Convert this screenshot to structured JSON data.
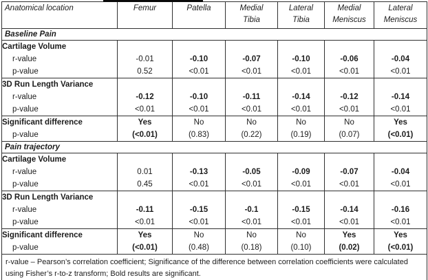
{
  "table": {
    "header": {
      "row_label": "Anatomical location",
      "columns": [
        "Femur",
        "Patella",
        "Medial\nTibia",
        "Lateral\nTibia",
        "Medial\nMeniscus",
        "Lateral\nMeniscus"
      ]
    },
    "sections": [
      {
        "title": "Baseline Pain",
        "blocks": [
          {
            "rows": [
              {
                "label": "Cartilage Volume",
                "bold_label": true,
                "indent": false,
                "values": [
                  "",
                  "",
                  "",
                  "",
                  "",
                  ""
                ],
                "bold": [
                  false,
                  false,
                  false,
                  false,
                  false,
                  false
                ]
              },
              {
                "label": "r-value",
                "bold_label": false,
                "indent": true,
                "values": [
                  "-0.01",
                  "-0.10",
                  "-0.07",
                  "-0.10",
                  "-0.06",
                  "-0.04"
                ],
                "bold": [
                  false,
                  true,
                  true,
                  true,
                  true,
                  true
                ]
              },
              {
                "label": "p-value",
                "bold_label": false,
                "indent": true,
                "values": [
                  "0.52",
                  "<0.01",
                  "<0.01",
                  "<0.01",
                  "<0.01",
                  "<0.01"
                ],
                "bold": [
                  false,
                  false,
                  false,
                  false,
                  false,
                  false
                ]
              }
            ]
          },
          {
            "rows": [
              {
                "label": "3D Run Length Variance",
                "bold_label": true,
                "indent": false,
                "values": [
                  "",
                  "",
                  "",
                  "",
                  "",
                  ""
                ],
                "bold": [
                  false,
                  false,
                  false,
                  false,
                  false,
                  false
                ]
              },
              {
                "label": "r-value",
                "bold_label": false,
                "indent": true,
                "values": [
                  "-0.12",
                  "-0.10",
                  "-0.11",
                  "-0.14",
                  "-0.12",
                  "-0.14"
                ],
                "bold": [
                  true,
                  true,
                  true,
                  true,
                  true,
                  true
                ]
              },
              {
                "label": "p-value",
                "bold_label": false,
                "indent": true,
                "values": [
                  "<0.01",
                  "<0.01",
                  "<0.01",
                  "<0.01",
                  "<0.01",
                  "<0.01"
                ],
                "bold": [
                  false,
                  false,
                  false,
                  false,
                  false,
                  false
                ]
              }
            ]
          },
          {
            "rows": [
              {
                "label": "Significant difference",
                "bold_label": true,
                "indent": false,
                "values": [
                  "Yes",
                  "No",
                  "No",
                  "No",
                  "No",
                  "Yes"
                ],
                "bold": [
                  true,
                  false,
                  false,
                  false,
                  false,
                  true
                ]
              },
              {
                "label": "p-value",
                "bold_label": false,
                "indent": true,
                "values": [
                  "(<0.01)",
                  "(0.83)",
                  "(0.22)",
                  "(0.19)",
                  "(0.07)",
                  "(<0.01)"
                ],
                "bold": [
                  true,
                  false,
                  false,
                  false,
                  false,
                  true
                ]
              }
            ]
          }
        ]
      },
      {
        "title": "Pain trajectory",
        "blocks": [
          {
            "rows": [
              {
                "label": "Cartilage Volume",
                "bold_label": true,
                "indent": false,
                "values": [
                  "",
                  "",
                  "",
                  "",
                  "",
                  ""
                ],
                "bold": [
                  false,
                  false,
                  false,
                  false,
                  false,
                  false
                ]
              },
              {
                "label": "r-value",
                "bold_label": false,
                "indent": true,
                "values": [
                  "0.01",
                  "-0.13",
                  "-0.05",
                  "-0.09",
                  "-0.07",
                  "-0.04"
                ],
                "bold": [
                  false,
                  true,
                  true,
                  true,
                  true,
                  true
                ]
              },
              {
                "label": "p-value",
                "bold_label": false,
                "indent": true,
                "values": [
                  "0.45",
                  "<0.01",
                  "<0.01",
                  "<0.01",
                  "<0.01",
                  "<0.01"
                ],
                "bold": [
                  false,
                  false,
                  false,
                  false,
                  false,
                  false
                ]
              }
            ]
          },
          {
            "rows": [
              {
                "label": "3D Run Length Variance",
                "bold_label": true,
                "indent": false,
                "values": [
                  "",
                  "",
                  "",
                  "",
                  "",
                  ""
                ],
                "bold": [
                  false,
                  false,
                  false,
                  false,
                  false,
                  false
                ]
              },
              {
                "label": "r-value",
                "bold_label": false,
                "indent": true,
                "values": [
                  "-0.11",
                  "-0.15",
                  "-0.1",
                  "-0.15",
                  "-0.14",
                  "-0.16"
                ],
                "bold": [
                  true,
                  true,
                  true,
                  true,
                  true,
                  true
                ]
              },
              {
                "label": "p-value",
                "bold_label": false,
                "indent": true,
                "values": [
                  "<0.01",
                  "<0.01",
                  "<0.01",
                  "<0.01",
                  "<0.01",
                  "<0.01"
                ],
                "bold": [
                  false,
                  false,
                  false,
                  false,
                  false,
                  false
                ]
              }
            ]
          },
          {
            "rows": [
              {
                "label": "Significant difference",
                "bold_label": true,
                "indent": false,
                "values": [
                  "Yes",
                  "No",
                  "No",
                  "No",
                  "Yes",
                  "Yes"
                ],
                "bold": [
                  true,
                  false,
                  false,
                  false,
                  true,
                  true
                ]
              },
              {
                "label": "p-value",
                "bold_label": false,
                "indent": true,
                "values": [
                  "(<0.01)",
                  "(0.48)",
                  "(0.18)",
                  "(0.10)",
                  "(0.02)",
                  "(<0.01)"
                ],
                "bold": [
                  true,
                  false,
                  false,
                  false,
                  true,
                  true
                ]
              }
            ]
          }
        ]
      }
    ],
    "footnote": "r-value – Pearson’s correlation coefficient; Significance of the difference between correlation coefficients were calculated using Fisher’s r-to-z transform; Bold results are significant."
  }
}
